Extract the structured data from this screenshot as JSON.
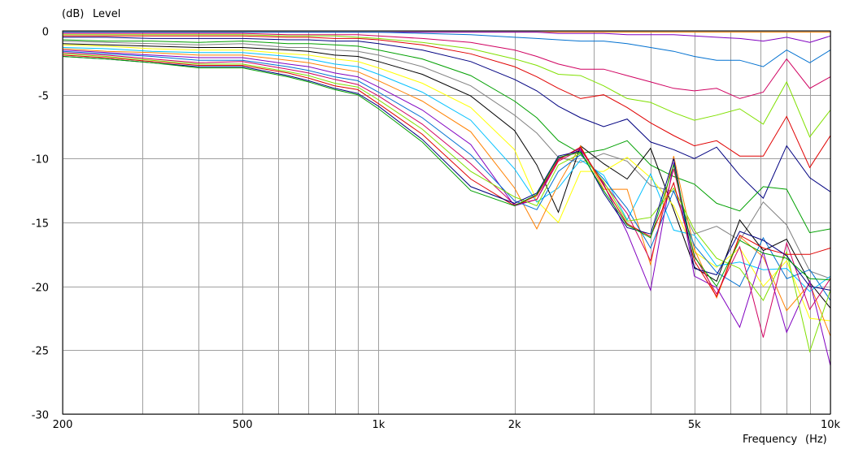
{
  "chart_data": {
    "type": "line",
    "xscale": "log",
    "xlim": [
      200,
      10000
    ],
    "ylim": [
      -30,
      0
    ],
    "grid": true,
    "legend": "none",
    "ylabel_unit": "(dB)",
    "ylabel": "Level",
    "xlabel": "Frequency",
    "xlabel_unit": "(Hz)",
    "x_tick_labels": [
      {
        "value": 200,
        "label": "200"
      },
      {
        "value": 500,
        "label": "500"
      },
      {
        "value": 1000,
        "label": "1k"
      },
      {
        "value": 2000,
        "label": "2k"
      },
      {
        "value": 5000,
        "label": "5k"
      },
      {
        "value": 10000,
        "label": "10k"
      }
    ],
    "x_gridlines": [
      200,
      300,
      400,
      500,
      600,
      700,
      800,
      900,
      1000,
      2000,
      3000,
      4000,
      5000,
      6000,
      7000,
      8000,
      9000,
      10000
    ],
    "y_ticks": [
      {
        "value": 0,
        "label": "0"
      },
      {
        "value": -5,
        "label": "-5"
      },
      {
        "value": -10,
        "label": "-10"
      },
      {
        "value": -15,
        "label": "-15"
      },
      {
        "value": -20,
        "label": "-20"
      },
      {
        "value": -25,
        "label": "-25"
      },
      {
        "value": -30,
        "label": "-30"
      }
    ],
    "x": [
      200,
      250,
      315,
      400,
      500,
      630,
      700,
      800,
      900,
      1000,
      1250,
      1600,
      2000,
      2240,
      2500,
      2800,
      3150,
      3550,
      4000,
      4500,
      5000,
      5600,
      6300,
      7100,
      8000,
      9000,
      10000
    ],
    "series": [
      {
        "color": "#ff8000",
        "values": [
          -0.1,
          -0.1,
          -0.1,
          -0.1,
          -0.1,
          -0.1,
          -0.1,
          -0.1,
          -0.1,
          -0.1,
          -0.1,
          -0.1,
          -0.1,
          -0.1,
          -0.1,
          -0.1,
          -0.1,
          -0.1,
          -0.1,
          -0.1,
          -0.1,
          -0.1,
          -0.1,
          -0.1,
          -0.1,
          -0.1,
          -0.1
        ]
      },
      {
        "color": "#8000c0",
        "values": [
          -0.1,
          -0.1,
          -0.1,
          -0.1,
          -0.1,
          -0.1,
          -0.1,
          -0.1,
          -0.1,
          -0.1,
          -0.1,
          -0.1,
          -0.1,
          -0.1,
          -0.2,
          -0.2,
          -0.2,
          -0.3,
          -0.3,
          -0.3,
          -0.4,
          -0.5,
          -0.6,
          -0.8,
          -0.5,
          -0.9,
          -0.4
        ]
      },
      {
        "color": "#0070d0",
        "values": [
          -0.1,
          -0.1,
          -0.1,
          -0.1,
          -0.1,
          -0.1,
          -0.1,
          -0.1,
          -0.1,
          -0.1,
          -0.2,
          -0.3,
          -0.5,
          -0.6,
          -0.7,
          -0.8,
          -0.8,
          -1.0,
          -1.3,
          -1.6,
          -2.0,
          -2.3,
          -2.3,
          -2.8,
          -1.5,
          -2.5,
          -1.5
        ]
      },
      {
        "color": "#d00060",
        "values": [
          -0.2,
          -0.2,
          -0.2,
          -0.2,
          -0.2,
          -0.3,
          -0.3,
          -0.3,
          -0.3,
          -0.4,
          -0.6,
          -0.9,
          -1.5,
          -2.0,
          -2.6,
          -3.0,
          -3.0,
          -3.5,
          -4.0,
          -4.5,
          -4.7,
          -4.5,
          -5.3,
          -4.8,
          -2.2,
          -4.5,
          -3.6
        ]
      },
      {
        "color": "#80e000",
        "values": [
          -0.3,
          -0.3,
          -0.3,
          -0.3,
          -0.3,
          -0.4,
          -0.4,
          -0.4,
          -0.5,
          -0.6,
          -0.9,
          -1.4,
          -2.2,
          -2.7,
          -3.4,
          -3.5,
          -4.3,
          -5.3,
          -5.6,
          -6.4,
          -7.0,
          -6.6,
          -6.1,
          -7.3,
          -4.0,
          -8.3,
          -6.2
        ]
      },
      {
        "color": "#e00000",
        "values": [
          -0.4,
          -0.4,
          -0.4,
          -0.4,
          -0.4,
          -0.5,
          -0.5,
          -0.6,
          -0.6,
          -0.7,
          -1.1,
          -1.8,
          -2.8,
          -3.6,
          -4.5,
          -5.3,
          -5.0,
          -6.0,
          -7.2,
          -8.2,
          -9.0,
          -8.6,
          -9.8,
          -9.8,
          -6.7,
          -10.7,
          -8.2
        ]
      },
      {
        "color": "#000080",
        "values": [
          -0.5,
          -0.5,
          -0.6,
          -0.6,
          -0.6,
          -0.7,
          -0.7,
          -0.8,
          -0.8,
          -1.0,
          -1.5,
          -2.4,
          -3.8,
          -4.7,
          -5.9,
          -6.8,
          -7.5,
          -6.9,
          -8.7,
          -9.3,
          -10.0,
          -9.1,
          -11.3,
          -13.1,
          -9.0,
          -11.5,
          -12.6
        ]
      },
      {
        "color": "#00a000",
        "values": [
          -0.7,
          -0.8,
          -0.8,
          -0.9,
          -0.8,
          -1.0,
          -1.0,
          -1.1,
          -1.2,
          -1.5,
          -2.2,
          -3.5,
          -5.5,
          -6.8,
          -8.6,
          -9.6,
          -9.3,
          -8.6,
          -10.5,
          -11.4,
          -12.0,
          -13.5,
          -14.1,
          -12.2,
          -12.4,
          -15.8,
          -15.5
        ]
      },
      {
        "color": "#808080",
        "values": [
          -0.8,
          -0.9,
          -1.0,
          -1.1,
          -1.0,
          -1.3,
          -1.3,
          -1.5,
          -1.6,
          -1.9,
          -2.8,
          -4.3,
          -6.6,
          -8.0,
          -9.9,
          -10.3,
          -9.6,
          -10.2,
          -12.1,
          -12.6,
          -15.9,
          -15.3,
          -16.4,
          -13.4,
          -15.2,
          -18.8,
          -19.4
        ]
      },
      {
        "color": "#000000",
        "values": [
          -1.0,
          -1.1,
          -1.2,
          -1.3,
          -1.3,
          -1.5,
          -1.6,
          -1.9,
          -2.0,
          -2.4,
          -3.4,
          -5.1,
          -7.8,
          -10.5,
          -14.2,
          -9.0,
          -10.4,
          -11.6,
          -9.2,
          -14.0,
          -18.5,
          -19.6,
          -14.8,
          -17.2,
          -16.3,
          -19.7,
          -21.7
        ]
      },
      {
        "color": "#ffff00",
        "values": [
          -1.1,
          -1.2,
          -1.4,
          -1.5,
          -1.5,
          -1.8,
          -1.9,
          -2.2,
          -2.4,
          -2.9,
          -4.1,
          -6.0,
          -9.3,
          -13.3,
          -15.0,
          -11.0,
          -11.0,
          -9.9,
          -11.5,
          -13.7,
          -17.3,
          -18.5,
          -17.0,
          -20.0,
          -18.0,
          -22.5,
          -22.7
        ]
      },
      {
        "color": "#00c0ff",
        "values": [
          -1.3,
          -1.4,
          -1.6,
          -1.7,
          -1.7,
          -2.0,
          -2.2,
          -2.6,
          -2.8,
          -3.4,
          -4.8,
          -7.0,
          -10.8,
          -13.4,
          -12.3,
          -10.1,
          -11.3,
          -14.8,
          -11.2,
          -15.6,
          -16.0,
          -18.4,
          -18.1,
          -18.7,
          -18.6,
          -20.4,
          -19.2
        ]
      },
      {
        "color": "#ff8000",
        "values": [
          -1.4,
          -1.6,
          -1.7,
          -1.9,
          -1.9,
          -2.3,
          -2.5,
          -2.9,
          -3.2,
          -3.9,
          -5.5,
          -7.9,
          -12.3,
          -15.5,
          -12.0,
          -9.0,
          -12.4,
          -12.4,
          -18.3,
          -9.8,
          -17.1,
          -20.9,
          -16.1,
          -17.7,
          -21.9,
          -19.8,
          -23.9
        ]
      },
      {
        "color": "#8000c0",
        "values": [
          -1.5,
          -1.7,
          -1.9,
          -2.1,
          -2.1,
          -2.6,
          -2.8,
          -3.3,
          -3.6,
          -4.4,
          -6.2,
          -8.9,
          -13.7,
          -13.2,
          -10.0,
          -9.2,
          -12.0,
          -15.8,
          -20.3,
          -10.3,
          -19.2,
          -20.1,
          -23.2,
          -17.3,
          -23.6,
          -19.6,
          -26.2
        ]
      },
      {
        "color": "#0070d0",
        "values": [
          -1.6,
          -1.8,
          -2.0,
          -2.3,
          -2.3,
          -2.8,
          -3.1,
          -3.6,
          -3.9,
          -4.8,
          -6.8,
          -9.7,
          -13.3,
          -14.0,
          -11.0,
          -9.7,
          -11.6,
          -13.9,
          -17.0,
          -12.5,
          -16.8,
          -18.9,
          -20.0,
          -16.2,
          -19.4,
          -18.7,
          -21.1
        ]
      },
      {
        "color": "#d00060",
        "values": [
          -1.7,
          -1.9,
          -2.2,
          -2.5,
          -2.4,
          -3.0,
          -3.3,
          -3.8,
          -4.2,
          -5.1,
          -7.3,
          -10.4,
          -13.6,
          -13.2,
          -10.2,
          -9.3,
          -11.9,
          -14.3,
          -18.0,
          -10.8,
          -17.6,
          -20.6,
          -16.9,
          -24.0,
          -16.6,
          -21.8,
          -19.4
        ]
      },
      {
        "color": "#80e000",
        "values": [
          -1.8,
          -2.0,
          -2.3,
          -2.6,
          -2.6,
          -3.2,
          -3.5,
          -4.1,
          -4.4,
          -5.4,
          -7.7,
          -11.0,
          -13.0,
          -13.7,
          -10.5,
          -9.6,
          -11.8,
          -14.9,
          -14.6,
          -12.3,
          -15.6,
          -17.8,
          -18.6,
          -21.1,
          -17.3,
          -25.1,
          -20.3
        ]
      },
      {
        "color": "#e00000",
        "values": [
          -1.9,
          -2.1,
          -2.4,
          -2.7,
          -2.7,
          -3.3,
          -3.7,
          -4.3,
          -4.6,
          -5.7,
          -8.1,
          -11.6,
          -13.7,
          -12.9,
          -10.1,
          -9.1,
          -12.1,
          -15.1,
          -16.1,
          -11.9,
          -18.0,
          -20.8,
          -16.0,
          -17.0,
          -17.5,
          -17.5,
          -17.0
        ]
      },
      {
        "color": "#000080",
        "values": [
          -2.0,
          -2.2,
          -2.5,
          -2.8,
          -2.8,
          -3.5,
          -3.9,
          -4.5,
          -4.9,
          -5.9,
          -8.5,
          -12.2,
          -13.5,
          -12.7,
          -9.8,
          -9.4,
          -12.7,
          -15.4,
          -15.9,
          -10.0,
          -18.6,
          -19.1,
          -15.7,
          -16.4,
          -17.6,
          -20.0,
          -20.3
        ]
      },
      {
        "color": "#00a000",
        "values": [
          -2.0,
          -2.2,
          -2.5,
          -2.9,
          -2.9,
          -3.6,
          -4.0,
          -4.6,
          -5.0,
          -6.1,
          -8.7,
          -12.5,
          -13.7,
          -12.8,
          -9.9,
          -9.5,
          -12.5,
          -15.2,
          -16.2,
          -10.5,
          -17.7,
          -20.0,
          -16.4,
          -17.4,
          -17.8,
          -19.4,
          -19.5
        ]
      }
    ]
  }
}
